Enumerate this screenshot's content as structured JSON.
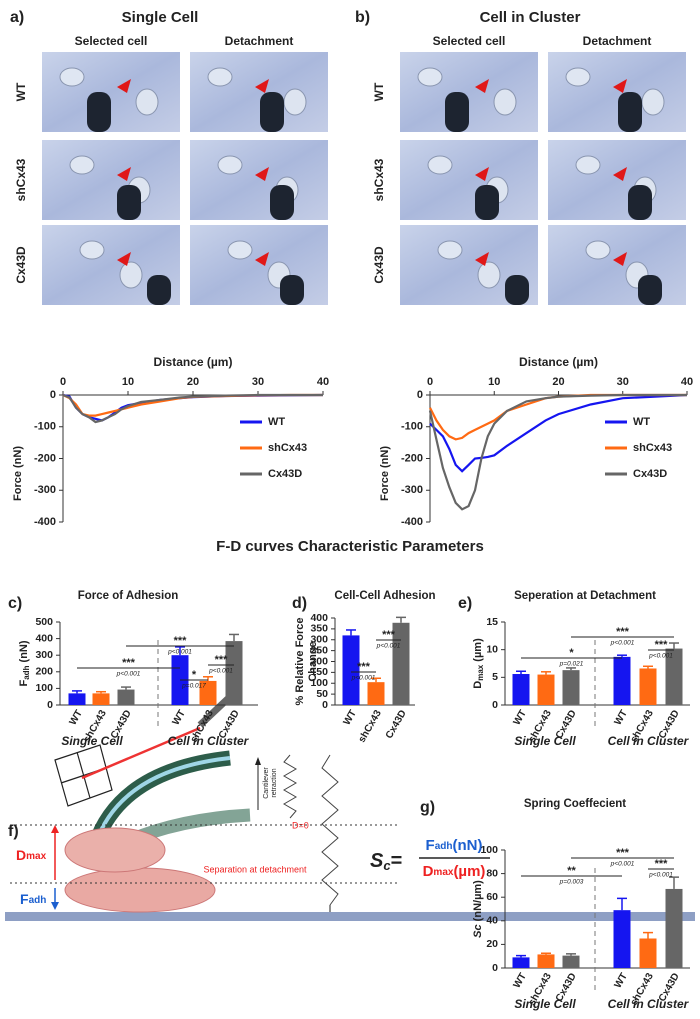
{
  "figure": {
    "panels": [
      {
        "label": "a)",
        "title": "Single Cell",
        "columns": [
          "Selected cell",
          "Detachment"
        ],
        "rows": [
          "WT",
          "shCx43",
          "Cx43D"
        ]
      },
      {
        "label": "b)",
        "title": "Cell in Cluster",
        "columns": [
          "Selected cell",
          "Detachment"
        ],
        "rows": [
          "WT",
          "shCx43",
          "Cx43D"
        ]
      }
    ],
    "section_title": "F-D curves Characteristic Parameters",
    "diagram": {
      "label": "f)",
      "dmax": {
        "main": "D",
        "sub": "max"
      },
      "fadh": {
        "main": "F",
        "sub": "adh"
      },
      "retraction": [
        "Cantilever",
        "retraction"
      ],
      "d0": "D=0",
      "separation": "Separation at detachment",
      "formula": {
        "lhs_main": "S",
        "lhs_sub": "c",
        "eq": "=",
        "num_main": "F",
        "num_sub": "adh",
        "num_unit": "(nN)",
        "den_main": "D",
        "den_sub": "max",
        "den_unit": "(µm)"
      }
    }
  },
  "chart_data": [
    {
      "type": "line",
      "xlabel": "Distance (µm)",
      "ylabel": "Force (nN)",
      "x": [
        0,
        1,
        2,
        3,
        4,
        5,
        6,
        7,
        8,
        9,
        10,
        12,
        15,
        18,
        20,
        25,
        30,
        35,
        40
      ],
      "series": [
        {
          "name": "WT",
          "color": "#1515f0",
          "values": [
            0,
            -5,
            -40,
            -60,
            -70,
            -75,
            -80,
            -70,
            -55,
            -40,
            -32,
            -25,
            -15,
            -10,
            -7,
            -3,
            -2,
            -1,
            0
          ]
        },
        {
          "name": "shCx43",
          "color": "#ff6a13",
          "values": [
            0,
            -10,
            -30,
            -60,
            -65,
            -65,
            -60,
            -55,
            -50,
            -45,
            -40,
            -30,
            -20,
            -10,
            -6,
            -3,
            -1,
            0,
            0
          ]
        },
        {
          "name": "Cx43D",
          "color": "#666666",
          "values": [
            0,
            -8,
            -40,
            -60,
            -70,
            -85,
            -80,
            -70,
            -60,
            -45,
            -35,
            -22,
            -15,
            -8,
            -5,
            -2,
            0,
            0,
            0
          ]
        }
      ],
      "xlim": [
        0,
        40
      ],
      "ylim": [
        -400,
        0
      ],
      "xticks": [
        0,
        10,
        20,
        30,
        40
      ],
      "yticks": [
        -400,
        -300,
        -200,
        -100,
        0
      ]
    },
    {
      "type": "line",
      "xlabel": "Distance (µm)",
      "ylabel": "Force (nN)",
      "x": [
        0,
        1,
        2,
        3,
        4,
        5,
        6,
        7,
        8,
        9,
        10,
        12,
        15,
        18,
        20,
        25,
        30,
        35,
        40
      ],
      "series": [
        {
          "name": "WT",
          "color": "#1515f0",
          "values": [
            -90,
            -110,
            -130,
            -170,
            -220,
            -240,
            -220,
            -200,
            -198,
            -195,
            -190,
            -160,
            -120,
            -80,
            -60,
            -30,
            -10,
            -5,
            0
          ]
        },
        {
          "name": "shCx43",
          "color": "#ff6a13",
          "values": [
            -40,
            -80,
            -110,
            -130,
            -140,
            -135,
            -120,
            -110,
            -100,
            -90,
            -80,
            -50,
            -30,
            -10,
            -5,
            0,
            0,
            0,
            0
          ]
        },
        {
          "name": "Cx43D",
          "color": "#666666",
          "values": [
            -50,
            -140,
            -230,
            -290,
            -340,
            -360,
            -350,
            -300,
            -200,
            -130,
            -90,
            -50,
            -20,
            -10,
            -5,
            -2,
            0,
            0,
            0
          ]
        }
      ],
      "xlim": [
        0,
        40
      ],
      "ylim": [
        -400,
        0
      ],
      "xticks": [
        0,
        10,
        20,
        30,
        40
      ],
      "yticks": [
        -400,
        -300,
        -200,
        -100,
        0
      ]
    },
    {
      "type": "bar",
      "panel_label": "c)",
      "title": "Force of Adhesion",
      "ylabel": {
        "main": "F",
        "sub": "adh",
        "unit": " (nN)"
      },
      "categories": [
        "WT",
        "shCx43",
        "Cx43D",
        "WT",
        "shCx43",
        "Cx43D"
      ],
      "groups": [
        "Single Cell",
        "Cell in Cluster"
      ],
      "values": [
        70,
        70,
        93,
        300,
        145,
        385
      ],
      "errors": [
        15,
        10,
        15,
        50,
        25,
        40
      ],
      "colors": [
        "#1515f0",
        "#ff6a13",
        "#666666",
        "#1515f0",
        "#ff6a13",
        "#666666"
      ],
      "ylim": [
        0,
        500
      ],
      "yticks": [
        0,
        100,
        200,
        300,
        400,
        500
      ],
      "annotations": [
        {
          "stars": "***",
          "p": "p<0.001"
        },
        {
          "stars": "***",
          "p": "p<0.001"
        },
        {
          "stars": "*",
          "p": "p=0.017"
        },
        {
          "stars": "***",
          "p": "p<0.001"
        }
      ]
    },
    {
      "type": "bar",
      "panel_label": "d)",
      "title": "Cell-Cell Adhesion",
      "ylabel": [
        "% Relative Force",
        "Change"
      ],
      "categories": [
        "WT",
        "shCx43",
        "Cx43D"
      ],
      "values": [
        320,
        105,
        378
      ],
      "errors": [
        25,
        18,
        25
      ],
      "colors": [
        "#1515f0",
        "#ff6a13",
        "#666666"
      ],
      "ylim": [
        0,
        400
      ],
      "yticks": [
        0,
        50,
        100,
        150,
        200,
        250,
        300,
        350,
        400
      ],
      "annotations": [
        {
          "stars": "***",
          "p": "p<0.001"
        },
        {
          "stars": "***",
          "p": "p<0.001"
        }
      ]
    },
    {
      "type": "bar",
      "panel_label": "e)",
      "title": "Seperation at Detachment",
      "ylabel": {
        "main": "D",
        "sub": "max",
        "unit": " (µm)"
      },
      "categories": [
        "WT",
        "shCx43",
        "Cx43D",
        "WT",
        "shCx43",
        "Cx43D"
      ],
      "groups": [
        "Single Cell",
        "Cell in Cluster"
      ],
      "values": [
        5.6,
        5.5,
        6.3,
        8.7,
        6.6,
        10.2
      ],
      "errors": [
        0.5,
        0.5,
        0.4,
        0.3,
        0.4,
        1
      ],
      "colors": [
        "#1515f0",
        "#ff6a13",
        "#666666",
        "#1515f0",
        "#ff6a13",
        "#666666"
      ],
      "ylim": [
        0,
        15
      ],
      "yticks": [
        0,
        5,
        10,
        15
      ],
      "annotations": [
        {
          "stars": "*",
          "p": "p=0.021"
        },
        {
          "stars": "***",
          "p": "p<0.001"
        },
        {
          "stars": "***",
          "p": "p<0.001"
        }
      ]
    },
    {
      "type": "bar",
      "panel_label": "g)",
      "title": "Spring Coeffecient",
      "ylabel": {
        "main": "Sc",
        "unit": " (nN/µm)"
      },
      "categories": [
        "WT",
        "shCx43",
        "Cx43D",
        "WT",
        "shCx43",
        "Cx43D"
      ],
      "groups": [
        "Single Cell",
        "Cell in Cluster"
      ],
      "values": [
        9,
        11.5,
        10.5,
        49,
        25,
        67
      ],
      "errors": [
        1.5,
        1,
        1.5,
        10,
        5,
        10
      ],
      "colors": [
        "#1515f0",
        "#ff6a13",
        "#666666",
        "#1515f0",
        "#ff6a13",
        "#666666"
      ],
      "ylim": [
        0,
        100
      ],
      "yticks": [
        0,
        20,
        40,
        60,
        80,
        100
      ],
      "annotations": [
        {
          "stars": "**",
          "p": "p=0.003"
        },
        {
          "stars": "***",
          "p": "p<0.001"
        },
        {
          "stars": "***",
          "p": "p<0.001"
        }
      ]
    }
  ]
}
